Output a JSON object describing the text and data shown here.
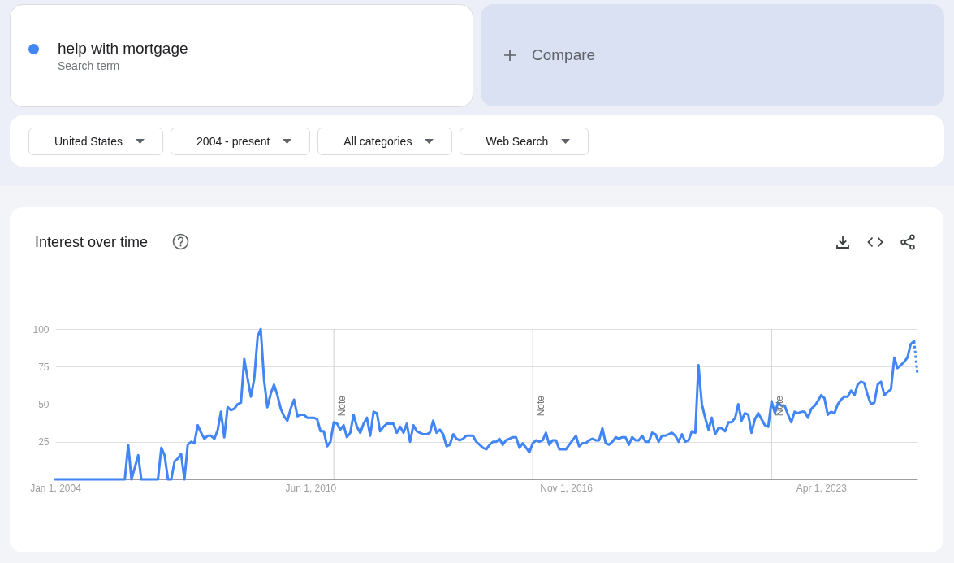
{
  "chart_data": {
    "type": "line",
    "title": "Interest over time",
    "annotations": [
      "Search term",
      "Compare",
      "United States",
      "2004 - present",
      "All categories",
      "Web Search"
    ],
    "xlim": [
      "2004-01",
      "2025-09"
    ],
    "xticks": [
      {
        "value": "2004-01-01",
        "label": "Jan 1, 2004"
      },
      {
        "value": "2010-06-01",
        "label": "Jun 1, 2010"
      },
      {
        "value": "2016-11-01",
        "label": "Nov 1, 2016"
      },
      {
        "value": "2023-04-01",
        "label": "Apr 1, 2023"
      }
    ],
    "ylim": [
      0,
      100
    ],
    "yticks": [
      25,
      50,
      75,
      100
    ],
    "grid": "y",
    "legend": "top left",
    "ref_lines": [
      {
        "axis": "x",
        "value": "2011-01-01",
        "label": "Note",
        "color": "#d0d0d0"
      },
      {
        "axis": "x",
        "value": "2016-01-01",
        "label": "Note",
        "color": "#d0d0d0"
      },
      {
        "axis": "x",
        "value": "2022-01-01",
        "label": "Note",
        "color": "#d0d0d0"
      }
    ],
    "series": [
      {
        "name": "help with mortgage",
        "color": "#4285f4",
        "x": [
          "2004-01",
          "2005-10",
          "2005-11",
          "2005-12",
          "2006-02",
          "2006-03",
          "2006-08",
          "2006-09",
          "2006-10",
          "2006-11",
          "2006-12",
          "2007-01",
          "2007-02",
          "2007-03",
          "2007-04",
          "2007-05",
          "2007-06",
          "2007-07",
          "2007-08",
          "2007-09",
          "2007-10",
          "2007-11",
          "2007-12",
          "2008-01",
          "2008-02",
          "2008-03",
          "2008-04",
          "2008-05",
          "2008-06",
          "2008-07",
          "2008-08",
          "2008-09",
          "2008-10",
          "2008-11",
          "2008-12",
          "2009-01",
          "2009-02",
          "2009-03",
          "2009-04",
          "2009-05",
          "2009-06",
          "2009-07",
          "2009-08",
          "2009-09",
          "2009-10",
          "2009-11",
          "2009-12",
          "2010-01",
          "2010-02",
          "2010-03",
          "2010-04",
          "2010-05",
          "2010-06",
          "2010-07",
          "2010-08",
          "2010-09",
          "2010-10",
          "2010-11",
          "2010-12",
          "2011-01",
          "2011-02",
          "2011-03",
          "2011-04",
          "2011-05",
          "2011-06",
          "2011-07",
          "2011-08",
          "2011-09",
          "2011-10",
          "2011-11",
          "2011-12",
          "2012-01",
          "2012-02",
          "2012-03",
          "2012-04",
          "2012-05",
          "2012-06",
          "2012-07",
          "2012-08",
          "2012-09",
          "2012-10",
          "2012-11",
          "2012-12",
          "2013-01",
          "2013-02",
          "2013-03",
          "2013-04",
          "2013-05",
          "2013-06",
          "2013-07",
          "2013-08",
          "2013-09",
          "2013-10",
          "2013-11",
          "2013-12",
          "2014-01",
          "2014-02",
          "2014-03",
          "2014-04",
          "2014-05",
          "2014-06",
          "2014-07",
          "2014-08",
          "2014-09",
          "2014-10",
          "2014-11",
          "2014-12",
          "2015-01",
          "2015-02",
          "2015-03",
          "2015-04",
          "2015-05",
          "2015-06",
          "2015-07",
          "2015-08",
          "2015-09",
          "2015-10",
          "2015-11",
          "2015-12",
          "2016-01",
          "2016-02",
          "2016-03",
          "2016-04",
          "2016-05",
          "2016-06",
          "2016-07",
          "2016-08",
          "2016-09",
          "2016-10",
          "2016-11",
          "2016-12",
          "2017-01",
          "2017-02",
          "2017-03",
          "2017-04",
          "2017-05",
          "2017-06",
          "2017-07",
          "2017-08",
          "2017-09",
          "2017-10",
          "2017-11",
          "2017-12",
          "2018-01",
          "2018-02",
          "2018-03",
          "2018-04",
          "2018-05",
          "2018-06",
          "2018-07",
          "2018-08",
          "2018-09",
          "2018-10",
          "2018-11",
          "2018-12",
          "2019-01",
          "2019-02",
          "2019-03",
          "2019-04",
          "2019-05",
          "2019-06",
          "2019-07",
          "2019-08",
          "2019-09",
          "2019-10",
          "2019-11",
          "2019-12",
          "2020-01",
          "2020-02",
          "2020-03",
          "2020-04",
          "2020-05",
          "2020-06",
          "2020-07",
          "2020-08",
          "2020-09",
          "2020-10",
          "2020-11",
          "2020-12",
          "2021-01",
          "2021-02",
          "2021-03",
          "2021-04",
          "2021-05",
          "2021-06",
          "2021-07",
          "2021-08",
          "2021-09",
          "2021-10",
          "2021-11",
          "2021-12",
          "2022-01",
          "2022-02",
          "2022-03",
          "2022-04",
          "2022-05",
          "2022-06",
          "2022-07",
          "2022-08",
          "2022-09",
          "2022-10",
          "2022-11",
          "2022-12",
          "2023-01",
          "2023-02",
          "2023-03",
          "2023-04",
          "2023-05",
          "2023-06",
          "2023-07",
          "2023-08",
          "2023-09",
          "2023-10",
          "2023-11",
          "2023-12",
          "2024-01",
          "2024-02",
          "2024-03",
          "2024-04",
          "2024-05",
          "2024-06",
          "2024-07",
          "2024-08",
          "2024-09",
          "2024-10",
          "2024-11",
          "2024-12",
          "2025-01",
          "2025-02",
          "2025-03",
          "2025-04",
          "2025-05",
          "2025-06",
          "2025-07",
          "2025-08"
        ],
        "values": [
          0,
          0,
          23,
          0,
          16,
          0,
          0,
          21,
          16,
          0,
          0,
          12,
          14,
          17,
          0,
          23,
          25,
          24,
          36,
          31,
          27,
          29,
          29,
          27,
          33,
          45,
          28,
          48,
          46,
          47,
          50,
          51,
          80,
          67,
          55,
          67,
          95,
          100,
          66,
          48,
          57,
          63,
          56,
          47,
          42,
          39,
          47,
          53,
          42,
          43,
          43,
          41,
          41,
          41,
          40,
          32,
          32,
          22,
          25,
          38,
          37,
          33,
          36,
          28,
          31,
          43,
          35,
          31,
          37,
          41,
          29,
          45,
          44,
          32,
          35,
          37,
          37,
          37,
          31,
          35,
          31,
          37,
          25,
          36,
          32,
          31,
          30,
          30,
          31,
          39,
          31,
          33,
          30,
          22,
          23,
          30,
          27,
          26,
          27,
          29,
          29,
          29,
          25,
          23,
          21,
          20,
          23,
          25,
          25,
          27,
          23,
          26,
          27,
          28,
          28,
          21,
          24,
          21,
          18,
          24,
          26,
          25,
          26,
          31,
          23,
          26,
          26,
          20,
          20,
          20,
          23,
          26,
          29,
          22,
          24,
          24,
          26,
          27,
          26,
          26,
          34,
          24,
          23,
          25,
          28,
          27,
          28,
          28,
          23,
          28,
          26,
          26,
          29,
          25,
          25,
          31,
          30,
          25,
          29,
          29,
          30,
          31,
          29,
          25,
          30,
          25,
          26,
          32,
          31,
          76,
          50,
          41,
          33,
          41,
          30,
          34,
          34,
          32,
          38,
          38,
          41,
          50,
          39,
          44,
          43,
          31,
          40,
          44,
          40,
          36,
          35,
          52,
          44,
          51,
          49,
          49,
          43,
          38,
          45,
          44,
          45,
          45,
          41,
          47,
          49,
          52,
          56,
          54,
          43,
          45,
          44,
          50,
          53,
          55,
          55,
          59,
          56,
          63,
          65,
          64,
          56,
          50,
          51,
          63,
          65,
          56,
          58,
          60,
          81,
          74,
          76,
          78,
          81,
          90,
          92
        ]
      },
      {
        "color": "#4285f4",
        "line_style": "dotted",
        "x": [
          "2025-08",
          "2025-09"
        ],
        "values": [
          92,
          70
        ]
      }
    ]
  }
}
